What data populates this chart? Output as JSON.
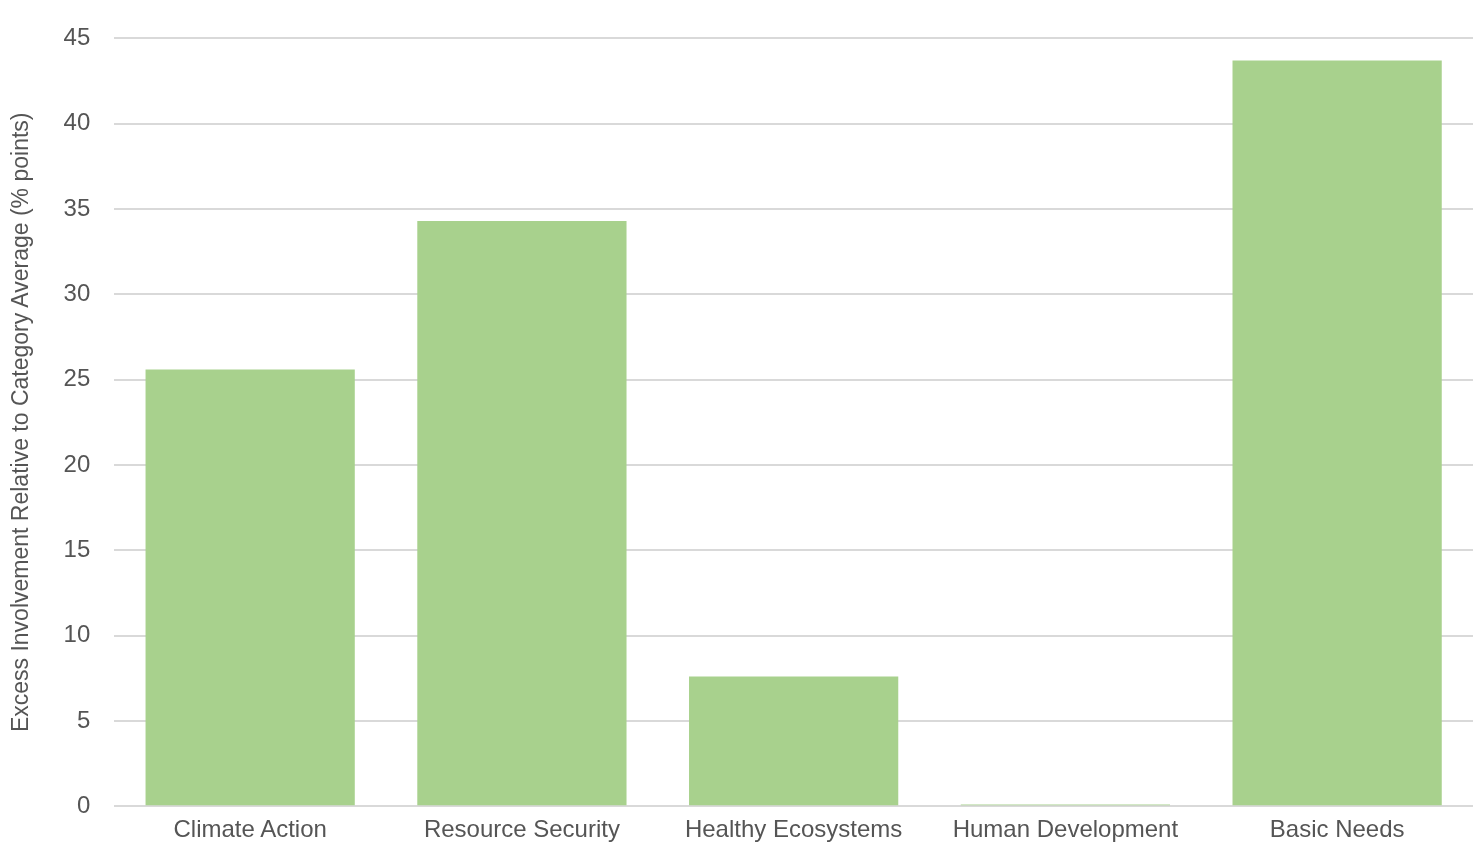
{
  "chart_data": {
    "type": "bar",
    "ylabel": "Excess Involvement Relative to Category Average (% points)",
    "categories": [
      "Climate Action",
      "Resource Security",
      "Healthy Ecosystems",
      "Human Development",
      "Basic Needs"
    ],
    "values": [
      25.6,
      34.3,
      7.6,
      0.1,
      43.7
    ],
    "color": "#a8d18d",
    "ylim": [
      0,
      45
    ],
    "yticks": [
      0,
      5,
      10,
      15,
      20,
      25,
      30,
      35,
      40,
      45
    ],
    "grid": "y",
    "legend": false
  }
}
